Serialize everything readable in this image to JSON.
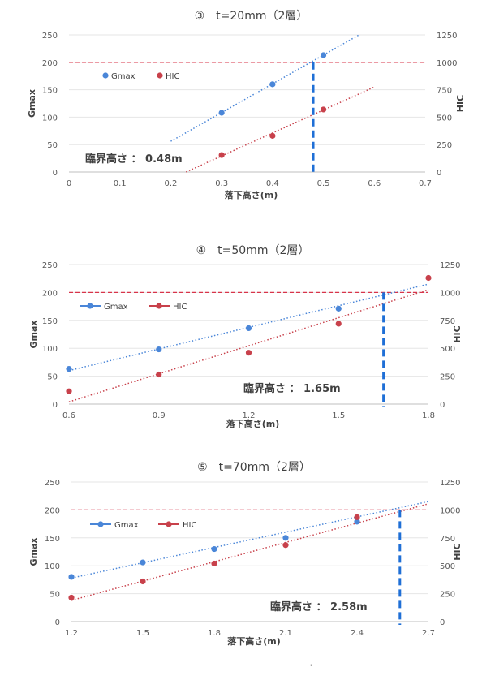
{
  "chart_data": [
    {
      "type": "scatter",
      "title": "③　t=20mm（2層）",
      "xlabel": "落下高さ(m)",
      "ylabel": "Gmax",
      "y2label": "HIC",
      "xlim": [
        0,
        0.7
      ],
      "ylim": [
        0,
        250
      ],
      "y2lim": [
        0,
        1250
      ],
      "xticks": [
        "0",
        "0.1",
        "0.2",
        "0.3",
        "0.4",
        "0.5",
        "0.6",
        "0.7"
      ],
      "yticks": [
        "0",
        "50",
        "100",
        "150",
        "200",
        "250"
      ],
      "y2ticks": [
        "0",
        "250",
        "500",
        "750",
        "1000",
        "1250"
      ],
      "legend_style": "markers",
      "series": [
        {
          "name": "Gmax",
          "axis": "left",
          "color": "#4a86d8",
          "x": [
            0.3,
            0.4,
            0.5
          ],
          "y": [
            108,
            160,
            213
          ],
          "trend_x": [
            0.2,
            0.57
          ],
          "trend_y": [
            56,
            250
          ]
        },
        {
          "name": "HIC",
          "axis": "right",
          "color": "#c8414b",
          "x": [
            0.3,
            0.4,
            0.5
          ],
          "y": [
            155,
            330,
            570
          ],
          "trend_x": [
            0.23,
            0.6
          ],
          "trend_y": [
            0,
            775
          ]
        }
      ],
      "reference_line": {
        "y": 200,
        "color": "#d8344a"
      },
      "critical_line": {
        "x": 0.48,
        "color": "#1f6fd6"
      },
      "annotation": "臨界高さ ： 0.48m"
    },
    {
      "type": "scatter",
      "title": "④　t=50mm（2層）",
      "xlabel": "落下高さ(m)",
      "ylabel": "Gmax",
      "y2label": "HIC",
      "xlim": [
        0.6,
        1.8
      ],
      "ylim": [
        0,
        250
      ],
      "y2lim": [
        0,
        1250
      ],
      "xticks": [
        "0.6",
        "0.9",
        "1.2",
        "1.5",
        "1.8"
      ],
      "yticks": [
        "0",
        "50",
        "100",
        "150",
        "200",
        "250"
      ],
      "y2ticks": [
        "0",
        "250",
        "500",
        "750",
        "1000",
        "1250"
      ],
      "legend_style": "lines",
      "series": [
        {
          "name": "Gmax",
          "axis": "left",
          "color": "#4a86d8",
          "x": [
            0.6,
            0.9,
            1.2,
            1.5
          ],
          "y": [
            63,
            98,
            136,
            171
          ],
          "trend_x": [
            0.6,
            1.8
          ],
          "trend_y": [
            60,
            215
          ]
        },
        {
          "name": "HIC",
          "axis": "right",
          "color": "#c8414b",
          "x": [
            0.6,
            0.9,
            1.2,
            1.5,
            1.8
          ],
          "y": [
            115,
            265,
            460,
            720,
            1130
          ],
          "trend_x": [
            0.6,
            1.8
          ],
          "trend_y": [
            20,
            1025
          ]
        }
      ],
      "reference_line": {
        "y": 200,
        "color": "#d8344a"
      },
      "critical_line": {
        "x": 1.65,
        "color": "#1f6fd6"
      },
      "annotation": "臨界高さ ： 1.65m"
    },
    {
      "type": "scatter",
      "title": "⑤　t=70mm（2層）",
      "xlabel": "落下高さ(m)",
      "ylabel": "Gmax",
      "y2label": "HIC",
      "xlim": [
        1.2,
        2.7
      ],
      "ylim": [
        0,
        250
      ],
      "y2lim": [
        0,
        1250
      ],
      "xticks": [
        "1.2",
        "1.5",
        "1.8",
        "2.1",
        "2.4",
        "2.7"
      ],
      "yticks": [
        "0",
        "50",
        "100",
        "150",
        "200",
        "250"
      ],
      "y2ticks": [
        "0",
        "250",
        "500",
        "750",
        "1000",
        "1250"
      ],
      "legend_style": "lines",
      "series": [
        {
          "name": "Gmax",
          "axis": "left",
          "color": "#4a86d8",
          "x": [
            1.2,
            1.5,
            1.8,
            2.1,
            2.4
          ],
          "y": [
            80,
            106,
            130,
            150,
            179
          ],
          "trend_x": [
            1.2,
            2.7
          ],
          "trend_y": [
            78,
            215
          ]
        },
        {
          "name": "HIC",
          "axis": "right",
          "color": "#c8414b",
          "x": [
            1.2,
            1.5,
            1.8,
            2.1,
            2.4
          ],
          "y": [
            215,
            360,
            520,
            685,
            935
          ],
          "trend_x": [
            1.2,
            2.7
          ],
          "trend_y": [
            190,
            1055
          ]
        }
      ],
      "reference_line": {
        "y": 200,
        "color": "#d8344a"
      },
      "critical_line": {
        "x": 2.58,
        "color": "#1f6fd6"
      },
      "annotation": "臨界高さ ： 2.58m"
    }
  ],
  "page_mark": "'"
}
